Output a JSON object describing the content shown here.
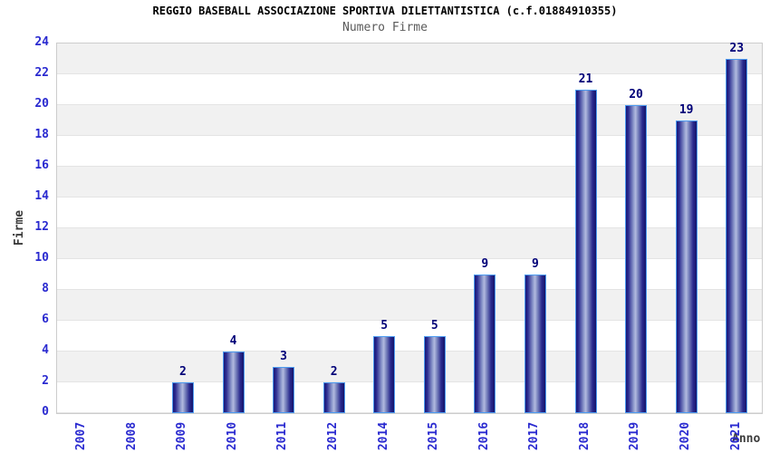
{
  "chart_data": {
    "type": "bar",
    "title": "REGGIO BASEBALL ASSOCIAZIONE SPORTIVA DILETTANTISTICA (c.f.01884910355)",
    "subtitle": "Numero Firme",
    "categories": [
      "2007",
      "2008",
      "2009",
      "2010",
      "2011",
      "2012",
      "2014",
      "2015",
      "2016",
      "2017",
      "2018",
      "2019",
      "2020",
      "2021"
    ],
    "values": [
      0,
      0,
      2,
      4,
      3,
      2,
      5,
      5,
      9,
      9,
      21,
      20,
      19,
      23
    ],
    "xlabel": "Anno",
    "ylabel": "Firme",
    "ylim": [
      0,
      24
    ],
    "ytick_step": 2,
    "yticks": [
      0,
      2,
      4,
      6,
      8,
      10,
      12,
      14,
      16,
      18,
      20,
      22,
      24
    ],
    "grid": "alternating-horizontal-bands",
    "legend_position": "none",
    "notes": "bars with value 0 are not drawn and have no value label",
    "colors": {
      "bar_dark": "#181878",
      "bar_light": "#b2badf",
      "bar_border": "#4d9bf0",
      "value_label": "#000078",
      "tick_label": "#2a2ad0",
      "band_gray": "#f1f1f1",
      "band_white": "#ffffff",
      "plot_border": "#cccccc",
      "title": "#000000",
      "subtitle": "#5a5a5a",
      "axis_title": "#3c3c3c"
    }
  }
}
